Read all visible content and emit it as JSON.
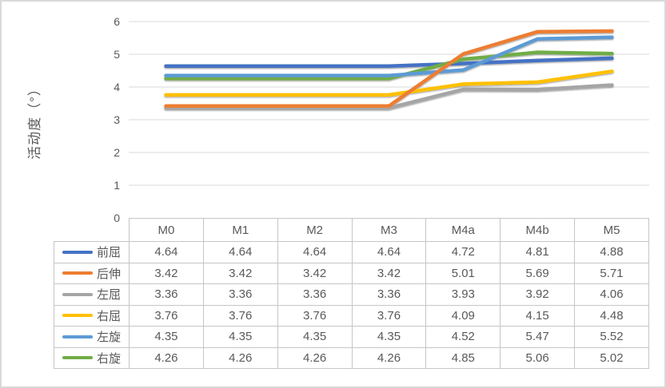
{
  "chart_data": {
    "type": "line",
    "title": "",
    "xlabel": "",
    "ylabel": "活动度（°）",
    "ylim": [
      0,
      6
    ],
    "yticks": [
      0,
      1,
      2,
      3,
      4,
      5,
      6
    ],
    "grid": true,
    "legend_position": "data-table-left",
    "categories": [
      "M0",
      "M1",
      "M2",
      "M3",
      "M4a",
      "M4b",
      "M5"
    ],
    "series": [
      {
        "name": "前屈",
        "slug": "front-flexion",
        "color": "#4472C4",
        "values": [
          4.64,
          4.64,
          4.64,
          4.64,
          4.72,
          4.81,
          4.88
        ]
      },
      {
        "name": "后伸",
        "slug": "back-extension",
        "color": "#ED7D31",
        "values": [
          3.42,
          3.42,
          3.42,
          3.42,
          5.01,
          5.69,
          5.71
        ]
      },
      {
        "name": "左屈",
        "slug": "left-flexion",
        "color": "#A5A5A5",
        "values": [
          3.36,
          3.36,
          3.36,
          3.36,
          3.93,
          3.92,
          4.06
        ]
      },
      {
        "name": "右屈",
        "slug": "right-flexion",
        "color": "#FFC000",
        "values": [
          3.76,
          3.76,
          3.76,
          3.76,
          4.09,
          4.15,
          4.48
        ]
      },
      {
        "name": "左旋",
        "slug": "left-rotation",
        "color": "#5B9BD5",
        "values": [
          4.35,
          4.35,
          4.35,
          4.35,
          4.52,
          5.47,
          5.52
        ]
      },
      {
        "name": "右旋",
        "slug": "right-rotation",
        "color": "#70AD47",
        "values": [
          4.26,
          4.26,
          4.26,
          4.26,
          4.85,
          5.06,
          5.02
        ]
      }
    ],
    "draw_order": [
      0,
      2,
      3,
      5,
      4,
      1
    ],
    "value_decimals": 2,
    "gridline_color": "#D9D9D9",
    "axis_text_color": "#595959",
    "table_border_color": "#C6C6C6"
  }
}
